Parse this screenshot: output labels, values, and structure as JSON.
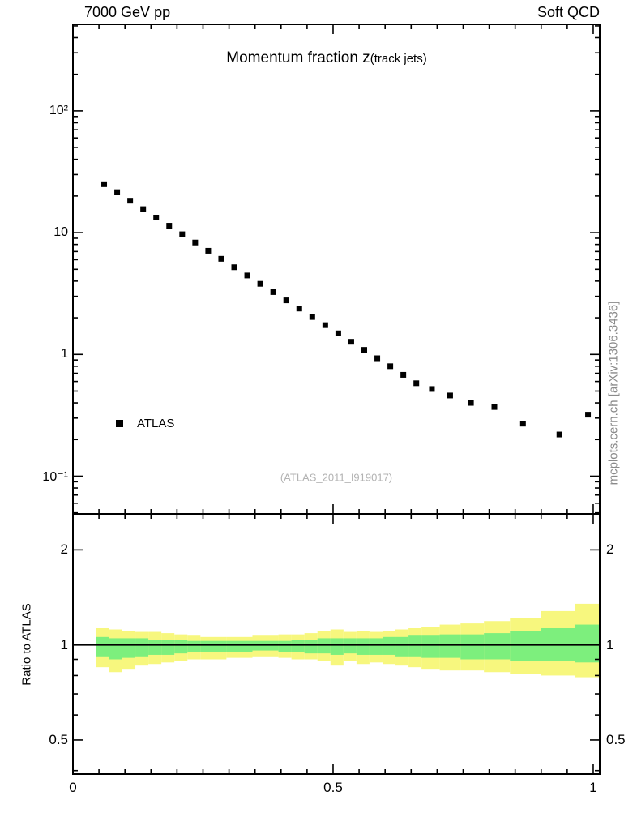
{
  "header": {
    "left": "7000 GeV pp",
    "right": "Soft QCD"
  },
  "watermark": "mcplots.cern.ch [arXiv:1306.3436]",
  "chart_data": {
    "type": "scatter",
    "title": "Momentum fraction z",
    "title_suffix": "(track jets)",
    "annotation": "(ATLAS_2011_I919017)",
    "xlim": [
      0,
      1.0125
    ],
    "x_ticks": [
      {
        "v": 0,
        "label": "0"
      },
      {
        "v": 0.5,
        "label": "0.5"
      },
      {
        "v": 1,
        "label": "1"
      }
    ],
    "legend": [
      {
        "label": "ATLAS",
        "marker": "square",
        "color": "#000000"
      }
    ],
    "main_panel": {
      "yscale": "log",
      "ylim": [
        0.049,
        515
      ],
      "y_ticks": [
        {
          "v": 100,
          "label": "10²"
        },
        {
          "v": 10,
          "label": "10"
        },
        {
          "v": 1,
          "label": "1"
        },
        {
          "v": 0.1,
          "label": "10⁻¹"
        }
      ],
      "series": [
        {
          "name": "ATLAS",
          "marker": "square",
          "color": "#000000",
          "x": [
            0.06,
            0.085,
            0.11,
            0.135,
            0.16,
            0.185,
            0.21,
            0.235,
            0.26,
            0.285,
            0.31,
            0.335,
            0.36,
            0.385,
            0.41,
            0.435,
            0.46,
            0.485,
            0.51,
            0.535,
            0.56,
            0.585,
            0.61,
            0.635,
            0.66,
            0.69,
            0.725,
            0.765,
            0.81,
            0.865,
            0.935,
            0.99
          ],
          "y": [
            25.0,
            21.5,
            18.3,
            15.6,
            13.3,
            11.4,
            9.7,
            8.3,
            7.1,
            6.1,
            5.2,
            4.45,
            3.8,
            3.25,
            2.78,
            2.38,
            2.03,
            1.74,
            1.49,
            1.27,
            1.09,
            0.93,
            0.8,
            0.68,
            0.58,
            0.52,
            0.46,
            0.4,
            0.37,
            0.27,
            0.22,
            0.32
          ]
        }
      ]
    },
    "ratio_panel": {
      "ylabel": "Ratio to ATLAS",
      "yscale": "log",
      "ylim": [
        0.39,
        2.6
      ],
      "reference_line": 1,
      "y_ticks": [
        {
          "v": 2,
          "label": "2"
        },
        {
          "v": 1,
          "label": "1"
        },
        {
          "v": 0.5,
          "label": "0.5"
        }
      ],
      "bands": {
        "edges": [
          0.045,
          0.07,
          0.095,
          0.12,
          0.145,
          0.17,
          0.195,
          0.22,
          0.245,
          0.295,
          0.345,
          0.395,
          0.42,
          0.445,
          0.47,
          0.495,
          0.52,
          0.545,
          0.57,
          0.595,
          0.62,
          0.645,
          0.67,
          0.705,
          0.745,
          0.79,
          0.84,
          0.9,
          0.965,
          1.0125
        ],
        "series": [
          {
            "name": "total-uncertainty-band",
            "color": "#f7f77e",
            "lo": [
              0.85,
              0.82,
              0.84,
              0.86,
              0.87,
              0.88,
              0.89,
              0.9,
              0.9,
              0.91,
              0.92,
              0.91,
              0.9,
              0.9,
              0.89,
              0.86,
              0.89,
              0.87,
              0.88,
              0.87,
              0.86,
              0.85,
              0.84,
              0.83,
              0.83,
              0.82,
              0.81,
              0.8,
              0.79
            ],
            "hi": [
              1.13,
              1.12,
              1.11,
              1.1,
              1.1,
              1.09,
              1.08,
              1.07,
              1.06,
              1.06,
              1.07,
              1.08,
              1.08,
              1.09,
              1.11,
              1.12,
              1.1,
              1.11,
              1.1,
              1.11,
              1.12,
              1.13,
              1.14,
              1.16,
              1.17,
              1.19,
              1.22,
              1.28,
              1.35
            ]
          },
          {
            "name": "core-uncertainty-band",
            "color": "#7def7d",
            "lo": [
              0.92,
              0.9,
              0.91,
              0.92,
              0.93,
              0.93,
              0.94,
              0.95,
              0.95,
              0.95,
              0.96,
              0.95,
              0.95,
              0.94,
              0.94,
              0.93,
              0.94,
              0.93,
              0.93,
              0.93,
              0.92,
              0.92,
              0.91,
              0.91,
              0.9,
              0.9,
              0.89,
              0.89,
              0.88
            ],
            "hi": [
              1.06,
              1.05,
              1.05,
              1.05,
              1.04,
              1.04,
              1.04,
              1.03,
              1.03,
              1.03,
              1.03,
              1.03,
              1.04,
              1.04,
              1.05,
              1.05,
              1.05,
              1.05,
              1.05,
              1.06,
              1.06,
              1.07,
              1.07,
              1.08,
              1.08,
              1.09,
              1.11,
              1.13,
              1.16
            ]
          }
        ]
      }
    }
  }
}
